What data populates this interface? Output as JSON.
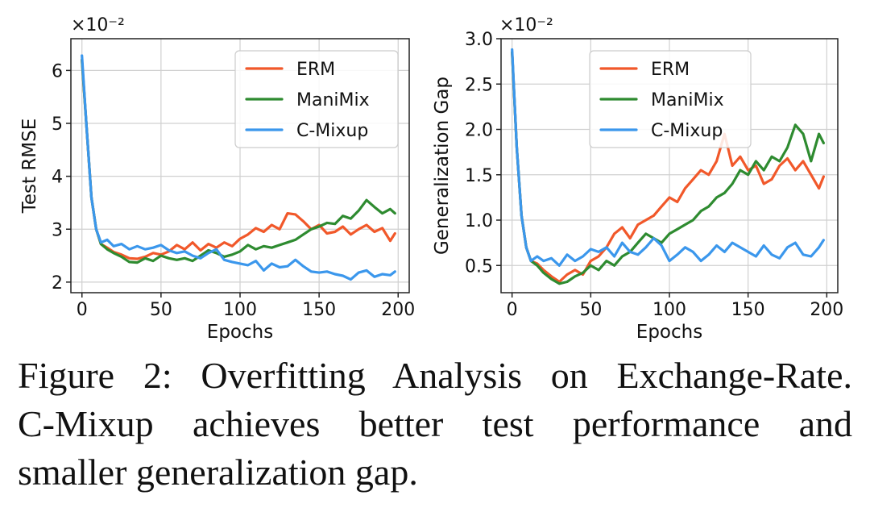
{
  "colors": {
    "ERM": "#f1582a",
    "ManiMix": "#2e8b30",
    "C-Mixup": "#3b97ec"
  },
  "chart_data": [
    {
      "type": "line",
      "title": "",
      "xlabel": "Epochs",
      "ylabel": "Test RMSE",
      "scale_label": "×10⁻²",
      "xlim": [
        -7,
        207
      ],
      "ylim": [
        1.8,
        6.6
      ],
      "xticks": [
        0,
        50,
        100,
        150,
        200
      ],
      "xtick_labels": [
        "0",
        "50",
        "100",
        "150",
        "200"
      ],
      "yticks": [
        2,
        3,
        4,
        5,
        6
      ],
      "ytick_labels": [
        "2",
        "3",
        "4",
        "5",
        "6"
      ],
      "grid": true,
      "legend": "top-right",
      "series": [
        {
          "name": "ERM",
          "x": [
            0,
            3,
            6,
            9,
            12,
            16,
            20,
            25,
            30,
            35,
            40,
            45,
            50,
            55,
            60,
            65,
            70,
            75,
            80,
            85,
            90,
            95,
            100,
            105,
            110,
            115,
            120,
            125,
            130,
            135,
            140,
            145,
            150,
            155,
            160,
            165,
            170,
            175,
            180,
            185,
            190,
            195,
            198
          ],
          "values": [
            6.2,
            4.9,
            3.6,
            3.0,
            2.72,
            2.65,
            2.57,
            2.52,
            2.45,
            2.44,
            2.48,
            2.55,
            2.52,
            2.58,
            2.7,
            2.62,
            2.75,
            2.6,
            2.72,
            2.65,
            2.75,
            2.68,
            2.82,
            2.9,
            3.02,
            2.95,
            3.08,
            3.0,
            3.3,
            3.28,
            3.15,
            3.0,
            3.08,
            2.92,
            2.95,
            3.05,
            2.9,
            3.0,
            3.08,
            2.95,
            3.02,
            2.78,
            2.92
          ]
        },
        {
          "name": "ManiMix",
          "x": [
            0,
            3,
            6,
            9,
            12,
            16,
            20,
            25,
            30,
            35,
            40,
            45,
            50,
            55,
            60,
            65,
            70,
            75,
            80,
            85,
            90,
            95,
            100,
            105,
            110,
            115,
            120,
            125,
            130,
            135,
            140,
            145,
            150,
            155,
            160,
            165,
            170,
            175,
            180,
            185,
            190,
            195,
            198
          ],
          "values": [
            6.2,
            4.9,
            3.6,
            3.0,
            2.72,
            2.62,
            2.55,
            2.48,
            2.38,
            2.37,
            2.45,
            2.4,
            2.5,
            2.45,
            2.42,
            2.45,
            2.4,
            2.5,
            2.6,
            2.55,
            2.48,
            2.52,
            2.58,
            2.7,
            2.62,
            2.68,
            2.65,
            2.7,
            2.75,
            2.8,
            2.9,
            3.0,
            3.05,
            3.12,
            3.1,
            3.25,
            3.2,
            3.35,
            3.55,
            3.42,
            3.3,
            3.38,
            3.3
          ]
        },
        {
          "name": "C-Mixup",
          "x": [
            0,
            3,
            6,
            9,
            12,
            16,
            20,
            25,
            30,
            35,
            40,
            45,
            50,
            55,
            60,
            65,
            70,
            75,
            80,
            85,
            90,
            95,
            100,
            105,
            110,
            115,
            120,
            125,
            130,
            135,
            140,
            145,
            150,
            155,
            160,
            165,
            170,
            175,
            180,
            185,
            190,
            195,
            198
          ],
          "values": [
            6.28,
            4.9,
            3.6,
            3.0,
            2.75,
            2.8,
            2.68,
            2.72,
            2.62,
            2.68,
            2.62,
            2.65,
            2.7,
            2.6,
            2.55,
            2.58,
            2.5,
            2.45,
            2.55,
            2.62,
            2.42,
            2.38,
            2.35,
            2.32,
            2.4,
            2.22,
            2.35,
            2.28,
            2.3,
            2.42,
            2.3,
            2.2,
            2.18,
            2.2,
            2.15,
            2.12,
            2.05,
            2.18,
            2.22,
            2.1,
            2.15,
            2.13,
            2.2
          ]
        }
      ]
    },
    {
      "type": "line",
      "title": "",
      "xlabel": "Epochs",
      "ylabel": "Generalization Gap",
      "scale_label": "×10⁻²",
      "xlim": [
        -7,
        207
      ],
      "ylim": [
        0.2,
        3.0
      ],
      "xticks": [
        0,
        50,
        100,
        150,
        200
      ],
      "xtick_labels": [
        "0",
        "50",
        "100",
        "150",
        "200"
      ],
      "yticks": [
        0.5,
        1.0,
        1.5,
        2.0,
        2.5,
        3.0
      ],
      "ytick_labels": [
        "0.5",
        "1.0",
        "1.5",
        "2.0",
        "2.5",
        "3.0"
      ],
      "grid": true,
      "legend": "top-center",
      "series": [
        {
          "name": "ERM",
          "x": [
            0,
            3,
            6,
            9,
            12,
            16,
            20,
            25,
            30,
            35,
            40,
            45,
            50,
            55,
            60,
            65,
            70,
            75,
            80,
            85,
            90,
            95,
            100,
            105,
            110,
            115,
            120,
            125,
            130,
            135,
            140,
            145,
            150,
            155,
            160,
            165,
            170,
            175,
            180,
            185,
            190,
            195,
            198
          ],
          "values": [
            2.85,
            1.8,
            1.05,
            0.7,
            0.55,
            0.52,
            0.45,
            0.38,
            0.32,
            0.4,
            0.45,
            0.4,
            0.55,
            0.6,
            0.7,
            0.85,
            0.92,
            0.8,
            0.95,
            1.0,
            1.05,
            1.15,
            1.25,
            1.2,
            1.35,
            1.45,
            1.55,
            1.5,
            1.65,
            1.95,
            1.6,
            1.7,
            1.55,
            1.6,
            1.4,
            1.45,
            1.6,
            1.68,
            1.55,
            1.65,
            1.5,
            1.35,
            1.48
          ]
        },
        {
          "name": "ManiMix",
          "x": [
            0,
            3,
            6,
            9,
            12,
            16,
            20,
            25,
            30,
            35,
            40,
            45,
            50,
            55,
            60,
            65,
            70,
            75,
            80,
            85,
            90,
            95,
            100,
            105,
            110,
            115,
            120,
            125,
            130,
            135,
            140,
            145,
            150,
            155,
            160,
            165,
            170,
            175,
            180,
            185,
            190,
            195,
            198
          ],
          "values": [
            2.85,
            1.8,
            1.05,
            0.7,
            0.55,
            0.5,
            0.42,
            0.35,
            0.3,
            0.32,
            0.38,
            0.42,
            0.5,
            0.45,
            0.55,
            0.5,
            0.6,
            0.65,
            0.75,
            0.85,
            0.8,
            0.75,
            0.85,
            0.9,
            0.95,
            1.0,
            1.1,
            1.15,
            1.25,
            1.3,
            1.4,
            1.55,
            1.5,
            1.65,
            1.55,
            1.7,
            1.65,
            1.8,
            2.05,
            1.95,
            1.65,
            1.95,
            1.85
          ]
        },
        {
          "name": "C-Mixup",
          "x": [
            0,
            3,
            6,
            9,
            12,
            16,
            20,
            25,
            30,
            35,
            40,
            45,
            50,
            55,
            60,
            65,
            70,
            75,
            80,
            85,
            90,
            95,
            100,
            105,
            110,
            115,
            120,
            125,
            130,
            135,
            140,
            145,
            150,
            155,
            160,
            165,
            170,
            175,
            180,
            185,
            190,
            195,
            198
          ],
          "values": [
            2.88,
            1.8,
            1.05,
            0.7,
            0.55,
            0.6,
            0.55,
            0.58,
            0.5,
            0.62,
            0.55,
            0.6,
            0.68,
            0.65,
            0.7,
            0.6,
            0.75,
            0.65,
            0.62,
            0.7,
            0.8,
            0.72,
            0.55,
            0.62,
            0.7,
            0.65,
            0.55,
            0.62,
            0.72,
            0.65,
            0.75,
            0.7,
            0.65,
            0.6,
            0.72,
            0.62,
            0.58,
            0.7,
            0.75,
            0.62,
            0.6,
            0.7,
            0.78
          ]
        }
      ]
    }
  ],
  "caption": {
    "line1": "Figure 2: Overfitting Analysis on Exchange-Rate.",
    "line2": "C-Mixup achieves better test performance and",
    "line3": "smaller generalization gap."
  }
}
